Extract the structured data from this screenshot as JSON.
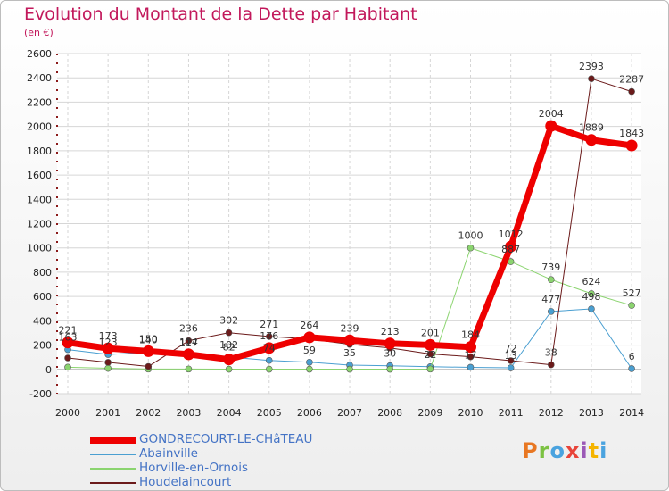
{
  "title": "Evolution du Montant de la Dette par Habitant",
  "subtitle": "(en €)",
  "logo": {
    "text": "Proxiti",
    "colors": [
      "#e87722",
      "#7cc242",
      "#4aa3df",
      "#e8443a",
      "#9b59b6",
      "#f5b400",
      "#4aa3df"
    ]
  },
  "chart_data": {
    "type": "line",
    "x": [
      "2000",
      "2001",
      "2002",
      "2003",
      "2004",
      "2005",
      "2006",
      "2007",
      "2008",
      "2009",
      "2010",
      "2011",
      "2012",
      "2013",
      "2014"
    ],
    "ylim": [
      -200,
      2600
    ],
    "yticks": [
      "-200",
      "0",
      "200",
      "400",
      "600",
      "800",
      "1000",
      "1200",
      "1400",
      "1600",
      "1800",
      "2000",
      "2200",
      "2400",
      "2600"
    ],
    "grid": true,
    "legend_position": "bottom-left",
    "series": [
      {
        "name": "GONDRECOURT-LE-CHâTEAU",
        "color": "#ee0000",
        "width": 7,
        "values": [
          221,
          173,
          150,
          124,
          82,
          176,
          264,
          239,
          213,
          201,
          184,
          1012,
          2004,
          1889,
          1843
        ],
        "labels": [
          "221",
          "173",
          "150",
          "124",
          "82",
          "176",
          "264",
          "239",
          "213",
          "201",
          "184",
          "1012",
          "2004",
          "1889",
          "1843"
        ]
      },
      {
        "name": "Abainville",
        "color": "#4a9fd1",
        "width": 1,
        "values": [
          163,
          123,
          140,
          117,
          102,
          74,
          59,
          35,
          30,
          22,
          17,
          13,
          477,
          498,
          6
        ],
        "labels": [
          "163",
          "123",
          "140",
          "117",
          "102",
          "74",
          "59",
          "35",
          "30",
          "22",
          "17",
          "13",
          "477",
          "498",
          "6"
        ]
      },
      {
        "name": "Horville-en-Ornois",
        "color": "#8bd46f",
        "width": 1,
        "values": [
          18,
          9,
          3,
          3,
          2,
          2,
          2,
          2,
          2,
          3,
          1000,
          887,
          739,
          624,
          527
        ],
        "labels": [
          "",
          "",
          "",
          "",
          "",
          "",
          "",
          "",
          "",
          "",
          "1000",
          "887",
          "739",
          "624",
          "527"
        ]
      },
      {
        "name": "Houdelaincourt",
        "color": "#6b1a1a",
        "width": 1,
        "values": [
          94,
          58,
          24,
          236,
          302,
          271,
          250,
          206,
          177,
          127,
          104,
          72,
          38,
          2393,
          2287
        ],
        "labels": [
          "",
          "",
          "",
          "236",
          "302",
          "271",
          "",
          "",
          "",
          "",
          "",
          "72",
          "38",
          "2393",
          "2287"
        ]
      }
    ]
  }
}
